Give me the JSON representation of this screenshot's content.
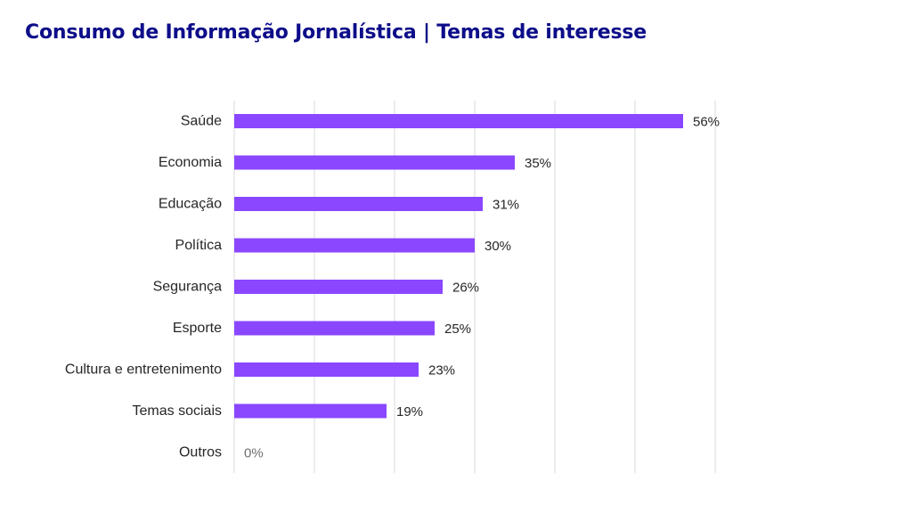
{
  "chart_data": {
    "type": "bar",
    "orientation": "horizontal",
    "title": "Consumo de Informação Jornalística | Temas de interesse",
    "categories": [
      "Saúde",
      "Economia",
      "Educação",
      "Política",
      "Segurança",
      "Esporte",
      "Cultura e entretenimento",
      "Temas sociais",
      "Outros"
    ],
    "values": [
      56,
      35,
      31,
      30,
      26,
      25,
      23,
      19,
      0
    ],
    "value_labels": [
      "56%",
      "35%",
      "31%",
      "30%",
      "26%",
      "25%",
      "23%",
      "19%",
      "0%"
    ],
    "xlim": [
      0,
      60
    ],
    "grid_step": 10,
    "grid": true,
    "legend": "none",
    "colors": {
      "bar": "#8a47ff",
      "title": "#0d0d8a",
      "grid": "#d9d9d9",
      "text": "#262626"
    }
  }
}
